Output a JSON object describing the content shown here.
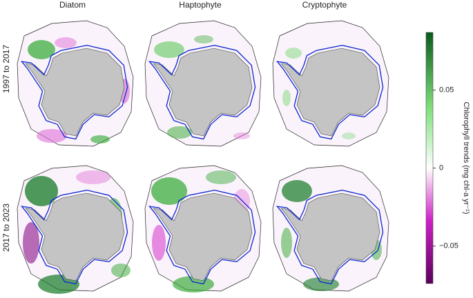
{
  "columns": [
    "Diatom",
    "Haptophyte",
    "Cryptophyte"
  ],
  "rows": [
    "1997 to 2017",
    "2017 to 2023"
  ],
  "colorbar": {
    "label": "Chlorophyll trends (mg chl-a yr⁻¹)",
    "clim": [
      -0.074,
      0.087
    ],
    "ticks": [
      0.05,
      0,
      {
        "value": -0.05,
        "label": "−0.05"
      }
    ]
  }
}
